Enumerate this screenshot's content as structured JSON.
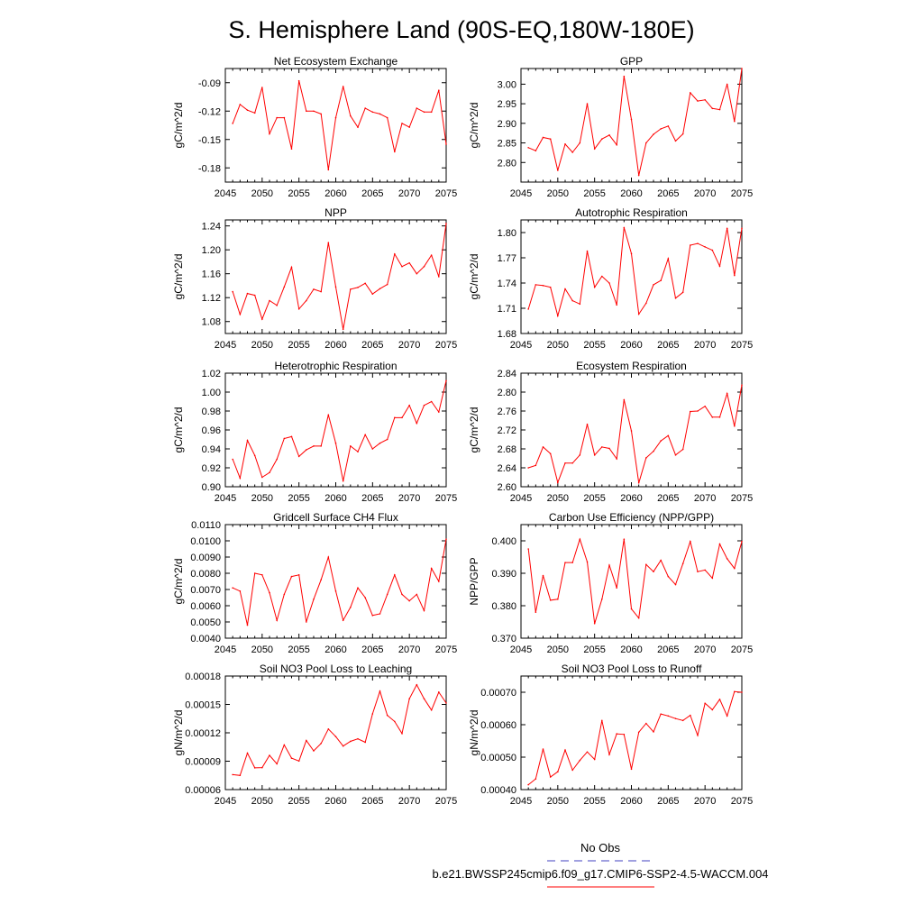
{
  "page": {
    "title": "S. Hemisphere Land (90S-EQ,180W-180E)"
  },
  "legend": {
    "obs_label": "No Obs",
    "obs_color": "#4040c0",
    "model_label": "b.e21.BWSSP245cmip6.f09_g17.CMIP6-SSP2-4.5-WACCM.004",
    "model_color": "#ff0000"
  },
  "chart_data": [
    {
      "type": "line",
      "title": "Net Ecosystem Exchange",
      "ylabel": "gC/m^2/d",
      "xlabel": "",
      "xlim": [
        2045,
        2075
      ],
      "xticks": [
        2045,
        2050,
        2055,
        2060,
        2065,
        2070,
        2075
      ],
      "xticklabels": [
        "2045",
        "2050",
        "2055",
        "2060",
        "2065",
        "2070",
        "2075"
      ],
      "ylim": [
        -0.195,
        -0.075
      ],
      "yticks": [
        -0.18,
        -0.15,
        -0.12,
        -0.09
      ],
      "yticklabels": [
        "-0.18",
        "-0.15",
        "-0.12",
        "-0.09"
      ],
      "x": [
        2046,
        2047,
        2048,
        2049,
        2050,
        2051,
        2052,
        2053,
        2054,
        2055,
        2056,
        2057,
        2058,
        2059,
        2060,
        2061,
        2062,
        2063,
        2064,
        2065,
        2066,
        2067,
        2068,
        2069,
        2070,
        2071,
        2072,
        2073,
        2074,
        2075
      ],
      "series": [
        {
          "name": "b.e21.BWSSP245cmip6.f09_g17.CMIP6-SSP2-4.5-WACCM.004",
          "color": "#ff0000",
          "values": [
            -0.133,
            -0.113,
            -0.119,
            -0.122,
            -0.095,
            -0.144,
            -0.127,
            -0.127,
            -0.16,
            -0.088,
            -0.12,
            -0.12,
            -0.123,
            -0.182,
            -0.127,
            -0.094,
            -0.125,
            -0.137,
            -0.117,
            -0.121,
            -0.123,
            -0.127,
            -0.163,
            -0.133,
            -0.137,
            -0.117,
            -0.121,
            -0.121,
            -0.098,
            -0.155
          ]
        }
      ]
    },
    {
      "type": "line",
      "title": "GPP",
      "ylabel": "gC/m^2/d",
      "xlabel": "",
      "xlim": [
        2045,
        2075
      ],
      "xticks": [
        2045,
        2050,
        2055,
        2060,
        2065,
        2070,
        2075
      ],
      "xticklabels": [
        "2045",
        "2050",
        "2055",
        "2060",
        "2065",
        "2070",
        "2075"
      ],
      "ylim": [
        2.75,
        3.04
      ],
      "yticks": [
        2.8,
        2.85,
        2.9,
        2.95,
        3.0
      ],
      "yticklabels": [
        "2.80",
        "2.85",
        "2.90",
        "2.95",
        "3.00"
      ],
      "x": [
        2046,
        2047,
        2048,
        2049,
        2050,
        2051,
        2052,
        2053,
        2054,
        2055,
        2056,
        2057,
        2058,
        2059,
        2060,
        2061,
        2062,
        2063,
        2064,
        2065,
        2066,
        2067,
        2068,
        2069,
        2070,
        2071,
        2072,
        2073,
        2074,
        2075
      ],
      "series": [
        {
          "name": "b.e21.BWSSP245cmip6.f09_g17.CMIP6-SSP2-4.5-WACCM.004",
          "color": "#ff0000",
          "values": [
            2.838,
            2.83,
            2.864,
            2.86,
            2.78,
            2.847,
            2.826,
            2.85,
            2.95,
            2.835,
            2.86,
            2.87,
            2.845,
            3.02,
            2.91,
            2.767,
            2.85,
            2.872,
            2.886,
            2.893,
            2.855,
            2.873,
            2.978,
            2.957,
            2.96,
            2.938,
            2.935,
            3.0,
            2.905,
            3.04
          ]
        }
      ]
    },
    {
      "type": "line",
      "title": "NPP",
      "ylabel": "gC/m^2/d",
      "xlabel": "",
      "xlim": [
        2045,
        2075
      ],
      "xticks": [
        2045,
        2050,
        2055,
        2060,
        2065,
        2070,
        2075
      ],
      "xticklabels": [
        "2045",
        "2050",
        "2055",
        "2060",
        "2065",
        "2070",
        "2075"
      ],
      "ylim": [
        1.06,
        1.25
      ],
      "yticks": [
        1.08,
        1.12,
        1.16,
        1.2,
        1.24
      ],
      "yticklabels": [
        "1.08",
        "1.12",
        "1.16",
        "1.20",
        "1.24"
      ],
      "x": [
        2046,
        2047,
        2048,
        2049,
        2050,
        2051,
        2052,
        2053,
        2054,
        2055,
        2056,
        2057,
        2058,
        2059,
        2060,
        2061,
        2062,
        2063,
        2064,
        2065,
        2066,
        2067,
        2068,
        2069,
        2070,
        2071,
        2072,
        2073,
        2074,
        2075
      ],
      "series": [
        {
          "name": "b.e21.BWSSP245cmip6.f09_g17.CMIP6-SSP2-4.5-WACCM.004",
          "color": "#ff0000",
          "values": [
            1.13,
            1.092,
            1.127,
            1.124,
            1.084,
            1.115,
            1.107,
            1.138,
            1.171,
            1.101,
            1.115,
            1.134,
            1.13,
            1.212,
            1.138,
            1.067,
            1.134,
            1.137,
            1.144,
            1.126,
            1.135,
            1.142,
            1.193,
            1.172,
            1.178,
            1.16,
            1.172,
            1.191,
            1.155,
            1.244
          ]
        }
      ]
    },
    {
      "type": "line",
      "title": "Autotrophic Respiration",
      "ylabel": "gC/m^2/d",
      "xlabel": "",
      "xlim": [
        2045,
        2075
      ],
      "xticks": [
        2045,
        2050,
        2055,
        2060,
        2065,
        2070,
        2075
      ],
      "xticklabels": [
        "2045",
        "2050",
        "2055",
        "2060",
        "2065",
        "2070",
        "2075"
      ],
      "ylim": [
        1.68,
        1.815
      ],
      "yticks": [
        1.68,
        1.71,
        1.74,
        1.77,
        1.8
      ],
      "yticklabels": [
        "1.68",
        "1.71",
        "1.74",
        "1.77",
        "1.80"
      ],
      "x": [
        2046,
        2047,
        2048,
        2049,
        2050,
        2051,
        2052,
        2053,
        2054,
        2055,
        2056,
        2057,
        2058,
        2059,
        2060,
        2061,
        2062,
        2063,
        2064,
        2065,
        2066,
        2067,
        2068,
        2069,
        2070,
        2071,
        2072,
        2073,
        2074,
        2075
      ],
      "series": [
        {
          "name": "b.e21.BWSSP245cmip6.f09_g17.CMIP6-SSP2-4.5-WACCM.004",
          "color": "#ff0000",
          "values": [
            1.709,
            1.738,
            1.737,
            1.735,
            1.701,
            1.733,
            1.719,
            1.715,
            1.778,
            1.735,
            1.748,
            1.74,
            1.714,
            1.806,
            1.775,
            1.703,
            1.716,
            1.738,
            1.743,
            1.769,
            1.722,
            1.729,
            1.785,
            1.787,
            1.783,
            1.779,
            1.76,
            1.805,
            1.749,
            1.805
          ]
        }
      ]
    },
    {
      "type": "line",
      "title": "Heterotrophic Respiration",
      "ylabel": "gC/m^2/d",
      "xlabel": "",
      "xlim": [
        2045,
        2075
      ],
      "xticks": [
        2045,
        2050,
        2055,
        2060,
        2065,
        2070,
        2075
      ],
      "xticklabels": [
        "2045",
        "2050",
        "2055",
        "2060",
        "2065",
        "2070",
        "2075"
      ],
      "ylim": [
        0.9,
        1.02
      ],
      "yticks": [
        0.9,
        0.92,
        0.94,
        0.96,
        0.98,
        1.0,
        1.02
      ],
      "yticklabels": [
        "0.90",
        "0.92",
        "0.94",
        "0.96",
        "0.98",
        "1.00",
        "1.02"
      ],
      "x": [
        2046,
        2047,
        2048,
        2049,
        2050,
        2051,
        2052,
        2053,
        2054,
        2055,
        2056,
        2057,
        2058,
        2059,
        2060,
        2061,
        2062,
        2063,
        2064,
        2065,
        2066,
        2067,
        2068,
        2069,
        2070,
        2071,
        2072,
        2073,
        2074,
        2075
      ],
      "series": [
        {
          "name": "b.e21.BWSSP245cmip6.f09_g17.CMIP6-SSP2-4.5-WACCM.004",
          "color": "#ff0000",
          "values": [
            0.929,
            0.909,
            0.949,
            0.933,
            0.91,
            0.915,
            0.929,
            0.951,
            0.953,
            0.932,
            0.939,
            0.943,
            0.943,
            0.976,
            0.946,
            0.906,
            0.943,
            0.937,
            0.955,
            0.94,
            0.946,
            0.95,
            0.973,
            0.973,
            0.986,
            0.967,
            0.986,
            0.99,
            0.979,
            1.012
          ]
        }
      ]
    },
    {
      "type": "line",
      "title": "Ecosystem Respiration",
      "ylabel": "gC/m^2/d",
      "xlabel": "",
      "xlim": [
        2045,
        2075
      ],
      "xticks": [
        2045,
        2050,
        2055,
        2060,
        2065,
        2070,
        2075
      ],
      "xticklabels": [
        "2045",
        "2050",
        "2055",
        "2060",
        "2065",
        "2070",
        "2075"
      ],
      "ylim": [
        2.6,
        2.84
      ],
      "yticks": [
        2.6,
        2.64,
        2.68,
        2.72,
        2.76,
        2.8,
        2.84
      ],
      "yticklabels": [
        "2.60",
        "2.64",
        "2.68",
        "2.72",
        "2.76",
        "2.80",
        "2.84"
      ],
      "x": [
        2046,
        2047,
        2048,
        2049,
        2050,
        2051,
        2052,
        2053,
        2054,
        2055,
        2056,
        2057,
        2058,
        2059,
        2060,
        2061,
        2062,
        2063,
        2064,
        2065,
        2066,
        2067,
        2068,
        2069,
        2070,
        2071,
        2072,
        2073,
        2074,
        2075
      ],
      "series": [
        {
          "name": "b.e21.BWSSP245cmip6.f09_g17.CMIP6-SSP2-4.5-WACCM.004",
          "color": "#ff0000",
          "values": [
            2.64,
            2.645,
            2.684,
            2.67,
            2.609,
            2.65,
            2.65,
            2.667,
            2.732,
            2.667,
            2.684,
            2.681,
            2.659,
            2.784,
            2.718,
            2.608,
            2.661,
            2.675,
            2.697,
            2.708,
            2.667,
            2.679,
            2.759,
            2.76,
            2.77,
            2.747,
            2.747,
            2.797,
            2.728,
            2.815
          ]
        }
      ]
    },
    {
      "type": "line",
      "title": "Gridcell Surface CH4 Flux",
      "ylabel": "gC/m^2/d",
      "xlabel": "",
      "xlim": [
        2045,
        2075
      ],
      "xticks": [
        2045,
        2050,
        2055,
        2060,
        2065,
        2070,
        2075
      ],
      "xticklabels": [
        "2045",
        "2050",
        "2055",
        "2060",
        "2065",
        "2070",
        "2075"
      ],
      "ylim": [
        0.004,
        0.011
      ],
      "yticks": [
        0.004,
        0.005,
        0.006,
        0.007,
        0.008,
        0.009,
        0.01,
        0.011
      ],
      "yticklabels": [
        "0.0040",
        "0.0050",
        "0.0060",
        "0.0070",
        "0.0080",
        "0.0090",
        "0.0100",
        "0.0110"
      ],
      "x": [
        2046,
        2047,
        2048,
        2049,
        2050,
        2051,
        2052,
        2053,
        2054,
        2055,
        2056,
        2057,
        2058,
        2059,
        2060,
        2061,
        2062,
        2063,
        2064,
        2065,
        2066,
        2067,
        2068,
        2069,
        2070,
        2071,
        2072,
        2073,
        2074,
        2075
      ],
      "series": [
        {
          "name": "b.e21.BWSSP245cmip6.f09_g17.CMIP6-SSP2-4.5-WACCM.004",
          "color": "#ff0000",
          "values": [
            0.0071,
            0.0069,
            0.0048,
            0.008,
            0.0079,
            0.0068,
            0.0051,
            0.0067,
            0.0078,
            0.0079,
            0.005,
            0.0064,
            0.0076,
            0.009,
            0.0069,
            0.0051,
            0.0059,
            0.0071,
            0.0065,
            0.0054,
            0.0055,
            0.0067,
            0.0079,
            0.0067,
            0.0063,
            0.0067,
            0.0057,
            0.0083,
            0.0075,
            0.0101
          ]
        }
      ]
    },
    {
      "type": "line",
      "title": "Carbon Use Efficiency (NPP/GPP)",
      "ylabel": "NPP/GPP",
      "xlabel": "",
      "xlim": [
        2045,
        2075
      ],
      "xticks": [
        2045,
        2050,
        2055,
        2060,
        2065,
        2070,
        2075
      ],
      "xticklabels": [
        "2045",
        "2050",
        "2055",
        "2060",
        "2065",
        "2070",
        "2075"
      ],
      "ylim": [
        0.37,
        0.405
      ],
      "yticks": [
        0.37,
        0.38,
        0.39,
        0.4
      ],
      "yticklabels": [
        "0.370",
        "0.380",
        "0.390",
        "0.400"
      ],
      "x": [
        2046,
        2047,
        2048,
        2049,
        2050,
        2051,
        2052,
        2053,
        2054,
        2055,
        2056,
        2057,
        2058,
        2059,
        2060,
        2061,
        2062,
        2063,
        2064,
        2065,
        2066,
        2067,
        2068,
        2069,
        2070,
        2071,
        2072,
        2073,
        2074,
        2075
      ],
      "series": [
        {
          "name": "b.e21.BWSSP245cmip6.f09_g17.CMIP6-SSP2-4.5-WACCM.004",
          "color": "#ff0000",
          "values": [
            0.3975,
            0.378,
            0.3893,
            0.3817,
            0.382,
            0.3933,
            0.3933,
            0.4005,
            0.3935,
            0.3745,
            0.382,
            0.3925,
            0.3855,
            0.4005,
            0.379,
            0.3762,
            0.3927,
            0.3905,
            0.394,
            0.389,
            0.3865,
            0.393,
            0.3998,
            0.3905,
            0.391,
            0.3885,
            0.399,
            0.3945,
            0.3915,
            0.3998
          ]
        }
      ]
    },
    {
      "type": "line",
      "title": "Soil NO3 Pool Loss to Leaching",
      "ylabel": "gN/m^2/d",
      "xlabel": "",
      "xlim": [
        2045,
        2075
      ],
      "xticks": [
        2045,
        2050,
        2055,
        2060,
        2065,
        2070,
        2075
      ],
      "xticklabels": [
        "2045",
        "2050",
        "2055",
        "2060",
        "2065",
        "2070",
        "2075"
      ],
      "ylim": [
        6e-05,
        0.00018
      ],
      "yticks": [
        6e-05,
        9e-05,
        0.00012,
        0.00015,
        0.00018
      ],
      "yticklabels": [
        "0.00006",
        "0.00009",
        "0.00012",
        "0.00015",
        "0.00018"
      ],
      "x": [
        2046,
        2047,
        2048,
        2049,
        2050,
        2051,
        2052,
        2053,
        2054,
        2055,
        2056,
        2057,
        2058,
        2059,
        2060,
        2061,
        2062,
        2063,
        2064,
        2065,
        2066,
        2067,
        2068,
        2069,
        2070,
        2071,
        2072,
        2073,
        2074,
        2075
      ],
      "series": [
        {
          "name": "b.e21.BWSSP245cmip6.f09_g17.CMIP6-SSP2-4.5-WACCM.004",
          "color": "#ff0000",
          "values": [
            7.58e-05,
            7.5e-05,
            9.86e-05,
            8.3e-05,
            8.32e-05,
            9.62e-05,
            8.72e-05,
            0.0001072,
            9.32e-05,
            9.02e-05,
            0.000112,
            0.000101,
            0.0001088,
            0.000124,
            0.000116,
            0.000106,
            0.000111,
            0.0001136,
            0.00011,
            0.00014,
            0.000164,
            0.0001385,
            0.000132,
            0.0001192,
            0.000156,
            0.0001708,
            0.000156,
            0.000144,
            0.000163,
            0.0001515
          ]
        }
      ]
    },
    {
      "type": "line",
      "title": "Soil NO3 Pool Loss to Runoff",
      "ylabel": "gN/m^2/d",
      "xlabel": "",
      "xlim": [
        2045,
        2075
      ],
      "xticks": [
        2045,
        2050,
        2055,
        2060,
        2065,
        2070,
        2075
      ],
      "xticklabels": [
        "2045",
        "2050",
        "2055",
        "2060",
        "2065",
        "2070",
        "2075"
      ],
      "ylim": [
        0.0004,
        0.00075
      ],
      "yticks": [
        0.0004,
        0.0005,
        0.0006,
        0.0007
      ],
      "yticklabels": [
        "0.00040",
        "0.00050",
        "0.00060",
        "0.00070"
      ],
      "x": [
        2046,
        2047,
        2048,
        2049,
        2050,
        2051,
        2052,
        2053,
        2054,
        2055,
        2056,
        2057,
        2058,
        2059,
        2060,
        2061,
        2062,
        2063,
        2064,
        2065,
        2066,
        2067,
        2068,
        2069,
        2070,
        2071,
        2072,
        2073,
        2074,
        2075
      ],
      "series": [
        {
          "name": "b.e21.BWSSP245cmip6.f09_g17.CMIP6-SSP2-4.5-WACCM.004",
          "color": "#ff0000",
          "values": [
            0.000415,
            0.000433,
            0.000525,
            0.000439,
            0.000455,
            0.000522,
            0.00046,
            0.00049,
            0.000516,
            0.000493,
            0.000613,
            0.000508,
            0.000572,
            0.00057,
            0.000463,
            0.000577,
            0.000604,
            0.000578,
            0.000633,
            0.000627,
            0.000619,
            0.000613,
            0.000629,
            0.000567,
            0.000666,
            0.000646,
            0.000678,
            0.000627,
            0.000702,
            0.0007
          ]
        }
      ]
    }
  ]
}
